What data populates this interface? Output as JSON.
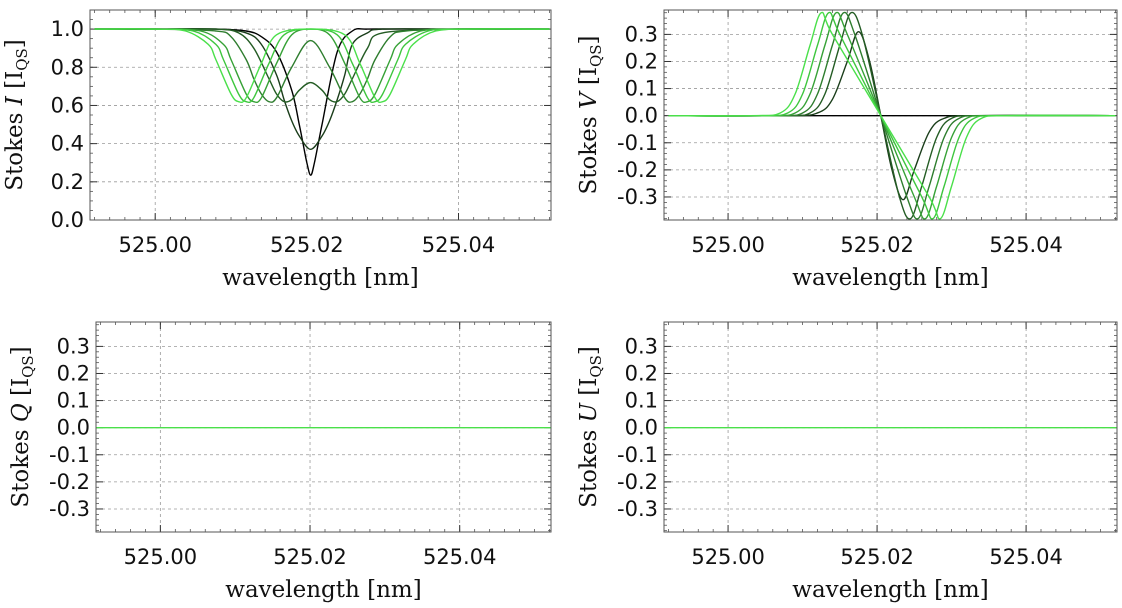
{
  "chart_data": [
    {
      "id": "I",
      "type": "line",
      "ylabel_prefix": "Stokes ",
      "ylabel_symbol": "I",
      "ylabel_unit": "I",
      "ylabel_unit_sub": "QS",
      "xlabel": "wavelength [nm]",
      "xlim": [
        524.9914,
        525.0522
      ],
      "ylim": [
        0.0,
        1.1
      ],
      "xticks": [
        525.0,
        525.02,
        525.04
      ],
      "xtick_labels": [
        "525.00",
        "525.02",
        "525.04"
      ],
      "yticks": [
        0.0,
        0.2,
        0.4,
        0.6,
        0.8,
        1.0
      ],
      "ytick_labels": [
        "0.0",
        "0.2",
        "0.4",
        "0.6",
        "0.8",
        "1.0"
      ],
      "grid": true,
      "series": [
        {
          "color": "#000000",
          "x": [
            524.992,
            525.0,
            525.008,
            525.012,
            525.014,
            525.016,
            525.018,
            525.019,
            525.0195,
            525.02,
            525.0205,
            525.021,
            525.022,
            525.024,
            525.026,
            525.028,
            525.032,
            525.04,
            525.052
          ],
          "y": [
            1.0,
            1.0,
            1.0,
            0.99,
            0.96,
            0.88,
            0.68,
            0.5,
            0.4,
            0.3,
            0.235,
            0.3,
            0.5,
            0.88,
            0.99,
            1.0,
            1.0,
            1.0,
            1.0
          ]
        },
        {
          "color": "#1a3d1a",
          "x": [
            524.992,
            525.0,
            525.008,
            525.012,
            525.014,
            525.016,
            525.017,
            525.018,
            525.019,
            525.0205,
            525.022,
            525.023,
            525.024,
            525.025,
            525.026,
            525.028,
            525.03,
            525.04,
            525.052
          ],
          "y": [
            1.0,
            1.0,
            1.0,
            0.98,
            0.92,
            0.76,
            0.63,
            0.52,
            0.44,
            0.37,
            0.44,
            0.52,
            0.63,
            0.76,
            0.92,
            0.98,
            1.0,
            1.0,
            1.0
          ]
        },
        {
          "color": "#245c24",
          "x": [
            524.992,
            525.0,
            525.008,
            525.011,
            525.013,
            525.015,
            525.016,
            525.017,
            525.018,
            525.019,
            525.0205,
            525.022,
            525.023,
            525.024,
            525.025,
            525.026,
            525.028,
            525.03,
            525.04,
            525.052
          ],
          "y": [
            1.0,
            1.0,
            1.0,
            0.98,
            0.9,
            0.74,
            0.66,
            0.62,
            0.63,
            0.68,
            0.72,
            0.68,
            0.63,
            0.62,
            0.66,
            0.74,
            0.9,
            0.98,
            1.0,
            1.0
          ]
        },
        {
          "color": "#2e7d2e",
          "x": [
            524.992,
            525.0,
            525.008,
            525.01,
            525.012,
            525.013,
            525.014,
            525.015,
            525.016,
            525.018,
            525.0205,
            525.023,
            525.025,
            525.026,
            525.027,
            525.028,
            525.029,
            525.031,
            525.033,
            525.04,
            525.052
          ],
          "y": [
            1.0,
            1.0,
            0.99,
            0.96,
            0.84,
            0.74,
            0.66,
            0.62,
            0.64,
            0.8,
            0.94,
            0.8,
            0.64,
            0.62,
            0.66,
            0.74,
            0.84,
            0.96,
            0.99,
            1.0,
            1.0
          ]
        },
        {
          "color": "#36a136",
          "x": [
            524.992,
            525.0,
            525.006,
            525.009,
            525.01,
            525.012,
            525.013,
            525.014,
            525.016,
            525.018,
            525.0205,
            525.023,
            525.025,
            525.027,
            525.028,
            525.029,
            525.031,
            525.032,
            525.035,
            525.04,
            525.052
          ],
          "y": [
            1.0,
            1.0,
            0.99,
            0.92,
            0.84,
            0.66,
            0.62,
            0.64,
            0.82,
            0.97,
            1.0,
            0.97,
            0.82,
            0.64,
            0.62,
            0.66,
            0.84,
            0.92,
            0.99,
            1.0,
            1.0
          ]
        },
        {
          "color": "#3ec63e",
          "x": [
            524.992,
            525.0,
            525.005,
            525.008,
            525.009,
            525.011,
            525.012,
            525.013,
            525.015,
            525.017,
            525.0205,
            525.024,
            525.026,
            525.028,
            525.029,
            525.03,
            525.032,
            525.033,
            525.036,
            525.04,
            525.052
          ],
          "y": [
            1.0,
            1.0,
            0.99,
            0.92,
            0.84,
            0.66,
            0.62,
            0.64,
            0.82,
            0.97,
            1.0,
            0.97,
            0.82,
            0.64,
            0.62,
            0.66,
            0.84,
            0.92,
            0.99,
            1.0,
            1.0
          ]
        },
        {
          "color": "#4ae04a",
          "x": [
            524.992,
            525.0,
            525.004,
            525.007,
            525.008,
            525.01,
            525.011,
            525.012,
            525.014,
            525.016,
            525.0205,
            525.025,
            525.027,
            525.029,
            525.03,
            525.031,
            525.033,
            525.034,
            525.037,
            525.042,
            525.052
          ],
          "y": [
            1.0,
            1.0,
            0.99,
            0.92,
            0.84,
            0.66,
            0.62,
            0.64,
            0.82,
            0.97,
            1.0,
            0.97,
            0.82,
            0.64,
            0.62,
            0.66,
            0.84,
            0.92,
            0.99,
            1.0,
            1.0
          ]
        }
      ]
    },
    {
      "id": "V",
      "type": "line",
      "ylabel_prefix": "Stokes ",
      "ylabel_symbol": "V",
      "ylabel_unit": "I",
      "ylabel_unit_sub": "QS",
      "xlabel": "wavelength [nm]",
      "xlim": [
        524.9914,
        525.0522
      ],
      "ylim": [
        -0.385,
        0.39
      ],
      "xticks": [
        525.0,
        525.02,
        525.04
      ],
      "xtick_labels": [
        "525.00",
        "525.02",
        "525.04"
      ],
      "yticks": [
        -0.3,
        -0.2,
        -0.1,
        0.0,
        0.1,
        0.2,
        0.3
      ],
      "ytick_labels": [
        "-0.3",
        "-0.2",
        "-0.1",
        "0.0",
        "0.1",
        "0.2",
        "0.3"
      ],
      "grid": true,
      "series": [
        {
          "color": "#000000",
          "x": [
            524.992,
            525.0,
            525.01,
            525.0205,
            525.03,
            525.04,
            525.052
          ],
          "y": [
            0.0,
            0.0,
            0.0,
            0.0,
            0.0,
            0.0,
            0.0
          ]
        },
        {
          "color": "#1a3d1a",
          "x": [
            524.992,
            525.008,
            525.012,
            525.014,
            525.016,
            525.0175,
            525.019,
            525.0205,
            525.022,
            525.0235,
            525.025,
            525.027,
            525.029,
            525.033,
            525.052
          ],
          "y": [
            0.0,
            0.0,
            0.01,
            0.06,
            0.2,
            0.31,
            0.2,
            0.0,
            -0.2,
            -0.31,
            -0.2,
            -0.06,
            -0.01,
            0.0,
            0.0
          ]
        },
        {
          "color": "#245c24",
          "x": [
            524.992,
            525.007,
            525.011,
            525.013,
            525.015,
            525.0165,
            525.018,
            525.0205,
            525.023,
            525.0245,
            525.026,
            525.028,
            525.03,
            525.034,
            525.052
          ],
          "y": [
            0.0,
            0.0,
            0.01,
            0.08,
            0.26,
            0.38,
            0.3,
            0.0,
            -0.3,
            -0.38,
            -0.26,
            -0.08,
            -0.01,
            0.0,
            0.0
          ]
        },
        {
          "color": "#2e7d2e",
          "x": [
            524.992,
            525.006,
            525.01,
            525.012,
            525.014,
            525.0155,
            525.017,
            525.0205,
            525.024,
            525.0255,
            525.027,
            525.029,
            525.031,
            525.035,
            525.052
          ],
          "y": [
            0.0,
            0.0,
            0.01,
            0.08,
            0.26,
            0.38,
            0.3,
            0.0,
            -0.3,
            -0.38,
            -0.26,
            -0.08,
            -0.01,
            0.0,
            0.0
          ]
        },
        {
          "color": "#36a136",
          "x": [
            524.992,
            525.005,
            525.009,
            525.011,
            525.013,
            525.0145,
            525.016,
            525.0205,
            525.025,
            525.0265,
            525.028,
            525.03,
            525.032,
            525.036,
            525.052
          ],
          "y": [
            0.0,
            0.0,
            0.01,
            0.08,
            0.26,
            0.38,
            0.3,
            0.0,
            -0.3,
            -0.38,
            -0.26,
            -0.08,
            -0.01,
            0.0,
            0.0
          ]
        },
        {
          "color": "#3ec63e",
          "x": [
            524.992,
            525.004,
            525.008,
            525.01,
            525.012,
            525.0135,
            525.015,
            525.0205,
            525.026,
            525.0275,
            525.029,
            525.031,
            525.033,
            525.037,
            525.052
          ],
          "y": [
            0.0,
            0.0,
            0.01,
            0.08,
            0.26,
            0.38,
            0.3,
            0.0,
            -0.3,
            -0.38,
            -0.26,
            -0.08,
            -0.01,
            0.0,
            0.0
          ]
        },
        {
          "color": "#4ae04a",
          "x": [
            524.992,
            525.003,
            525.007,
            525.009,
            525.011,
            525.0125,
            525.014,
            525.0205,
            525.027,
            525.0285,
            525.03,
            525.032,
            525.034,
            525.038,
            525.052
          ],
          "y": [
            0.0,
            0.0,
            0.01,
            0.08,
            0.26,
            0.38,
            0.3,
            0.0,
            -0.3,
            -0.38,
            -0.26,
            -0.08,
            -0.01,
            0.0,
            0.0
          ]
        }
      ]
    },
    {
      "id": "Q",
      "type": "line",
      "ylabel_prefix": "Stokes ",
      "ylabel_symbol": "Q",
      "ylabel_unit": "I",
      "ylabel_unit_sub": "QS",
      "xlabel": "wavelength [nm]",
      "xlim": [
        524.9914,
        525.0522
      ],
      "ylim": [
        -0.385,
        0.39
      ],
      "xticks": [
        525.0,
        525.02,
        525.04
      ],
      "xtick_labels": [
        "525.00",
        "525.02",
        "525.04"
      ],
      "yticks": [
        -0.3,
        -0.2,
        -0.1,
        0.0,
        0.1,
        0.2,
        0.3
      ],
      "ytick_labels": [
        "-0.3",
        "-0.2",
        "-0.1",
        "0.0",
        "0.1",
        "0.2",
        "0.3"
      ],
      "grid": true,
      "series": [
        {
          "color": "#4ae04a",
          "x": [
            524.9914,
            525.0522
          ],
          "y": [
            0.0,
            0.0
          ]
        }
      ]
    },
    {
      "id": "U",
      "type": "line",
      "ylabel_prefix": "Stokes ",
      "ylabel_symbol": "U",
      "ylabel_unit": "I",
      "ylabel_unit_sub": "QS",
      "xlabel": "wavelength [nm]",
      "xlim": [
        524.9914,
        525.0522
      ],
      "ylim": [
        -0.385,
        0.39
      ],
      "xticks": [
        525.0,
        525.02,
        525.04
      ],
      "xtick_labels": [
        "525.00",
        "525.02",
        "525.04"
      ],
      "yticks": [
        -0.3,
        -0.2,
        -0.1,
        0.0,
        0.1,
        0.2,
        0.3
      ],
      "ytick_labels": [
        "-0.3",
        "-0.2",
        "-0.1",
        "0.0",
        "0.1",
        "0.2",
        "0.3"
      ],
      "grid": true,
      "series": [
        {
          "color": "#4ae04a",
          "x": [
            524.9914,
            525.0522
          ],
          "y": [
            0.0,
            0.0
          ]
        }
      ]
    }
  ]
}
